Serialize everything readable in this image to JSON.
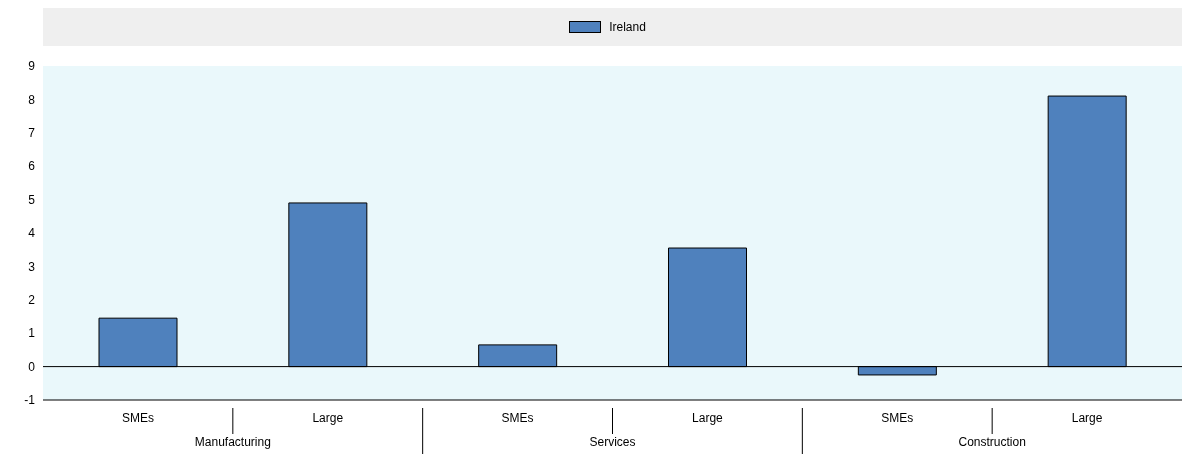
{
  "chart_data": {
    "type": "bar",
    "categories": [
      "SMEs",
      "Large",
      "SMEs",
      "Large",
      "SMEs",
      "Large"
    ],
    "series": [
      {
        "name": "Ireland",
        "color": "#4f81bd",
        "values": [
          1.45,
          4.9,
          0.65,
          3.55,
          -0.25,
          8.1
        ]
      }
    ],
    "annotations": [
      "Manufacturing",
      "Services",
      "Construction"
    ],
    "ylim": [
      -1,
      9
    ],
    "yticks": [
      -1,
      0,
      1,
      2,
      3,
      4,
      5,
      6,
      7,
      8,
      9
    ],
    "legend": "top"
  }
}
